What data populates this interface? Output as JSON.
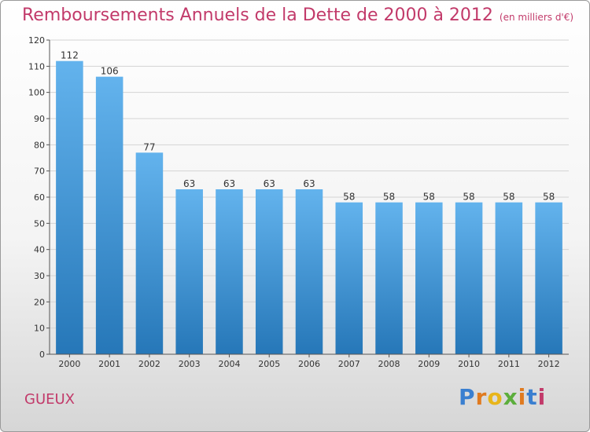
{
  "title": "Remboursements Annuels de la Dette de 2000 à 2012",
  "subtitle": "(en milliers d'€)",
  "commune": "GUEUX",
  "brand": {
    "text": "Proxiti",
    "letters": [
      "P",
      "r",
      "o",
      "x",
      "i",
      "t",
      "i"
    ],
    "colors": [
      "#3a7fd0",
      "#e07a1f",
      "#e8b51a",
      "#5cae3c",
      "#e07a1f",
      "#3a7fd0",
      "#c23a6a"
    ]
  },
  "colors": {
    "bar_top": "#63b3ed",
    "bar_bottom": "#2677b8",
    "title": "#c23a6a"
  },
  "chart_data": {
    "type": "bar",
    "categories": [
      "2000",
      "2001",
      "2002",
      "2003",
      "2004",
      "2005",
      "2006",
      "2007",
      "2008",
      "2009",
      "2010",
      "2011",
      "2012"
    ],
    "values": [
      112,
      106,
      77,
      63,
      63,
      63,
      63,
      58,
      58,
      58,
      58,
      58,
      58
    ],
    "y_ticks": [
      0,
      10,
      20,
      30,
      40,
      50,
      60,
      70,
      80,
      90,
      100,
      110,
      120
    ],
    "ylim": [
      0,
      120
    ],
    "grid": true,
    "data_labels": true
  }
}
